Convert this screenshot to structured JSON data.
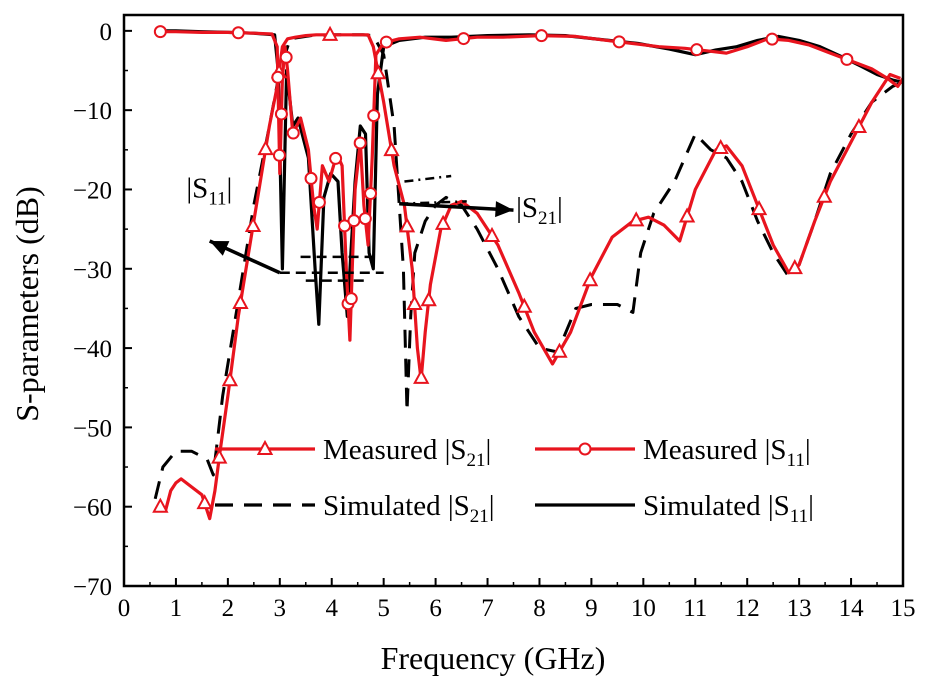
{
  "chart_data": {
    "type": "line",
    "xlabel": "Frequency (GHz)",
    "ylabel": "S-parameters (dB)",
    "xlim": [
      0,
      15
    ],
    "ylim": [
      -70,
      2
    ],
    "xticks": [
      0,
      1,
      2,
      3,
      4,
      5,
      6,
      7,
      8,
      9,
      10,
      11,
      12,
      13,
      14,
      15
    ],
    "yticks": [
      0,
      -10,
      -20,
      -30,
      -40,
      -50,
      -60,
      -70
    ],
    "xtick_labels": [
      "0",
      "1",
      "2",
      "3",
      "4",
      "5",
      "6",
      "7",
      "8",
      "9",
      "10",
      "11",
      "12",
      "13",
      "14",
      "15"
    ],
    "ytick_labels": [
      "0",
      "−10",
      "−20",
      "−30",
      "−40",
      "−50",
      "−60",
      "−70"
    ],
    "grid": false,
    "legend_position": "lower-center",
    "series": [
      {
        "name": "Measured |S21|",
        "legend_main": "Measured ",
        "legend_sub": "21",
        "color": "#e8141e",
        "style": "solid",
        "marker": "triangle",
        "x": [
          0.7,
          0.8,
          0.9,
          1.0,
          1.1,
          1.3,
          1.5,
          1.65,
          1.75,
          1.85,
          2.0,
          2.2,
          2.4,
          2.6,
          2.8,
          2.95,
          3.05,
          3.15,
          3.3,
          3.5,
          3.7,
          3.8,
          3.9,
          4.0,
          4.2,
          4.3,
          4.4,
          4.5,
          4.6,
          4.7,
          4.8,
          5.0,
          5.2,
          5.4,
          5.55,
          5.65,
          5.72,
          5.8,
          5.9,
          6.1,
          6.3,
          6.5,
          6.8,
          7.2,
          7.6,
          7.9,
          8.25,
          8.6,
          9.0,
          9.4,
          9.8,
          10.1,
          10.4,
          10.7,
          11.0,
          11.4,
          11.6,
          11.9,
          12.2,
          12.5,
          12.8,
          13.0,
          13.3,
          13.6,
          14.0,
          14.4,
          14.75,
          14.95
        ],
        "y": [
          -60,
          -60.5,
          -58,
          -57,
          -56.5,
          -57.5,
          -58.5,
          -61.5,
          -58,
          -53,
          -46,
          -36,
          -28,
          -20,
          -12,
          -7,
          -2,
          -1,
          -0.8,
          -0.6,
          -0.5,
          -0.5,
          -0.5,
          -0.5,
          -0.5,
          -0.5,
          -0.5,
          -0.5,
          -0.5,
          -0.5,
          -2,
          -9,
          -17,
          -22,
          -30,
          -40,
          -44,
          -38,
          -32,
          -25,
          -22,
          -21.5,
          -23,
          -27,
          -33,
          -38,
          -42,
          -38,
          -31,
          -26,
          -24,
          -23.5,
          -24.5,
          -26.5,
          -20,
          -15,
          -14.5,
          -17,
          -22,
          -27,
          -30.5,
          -29.5,
          -24,
          -19,
          -14,
          -9,
          -5.5,
          -6
        ]
      },
      {
        "name": "Measured |S11|",
        "legend_main": "Measured ",
        "legend_sub": "11",
        "color": "#e8141e",
        "style": "solid",
        "marker": "circle",
        "x": [
          0.7,
          1.0,
          1.5,
          2.0,
          2.5,
          2.85,
          2.95,
          3.0,
          3.05,
          3.1,
          3.15,
          3.25,
          3.4,
          3.55,
          3.65,
          3.72,
          3.82,
          3.95,
          4.1,
          4.2,
          4.28,
          4.35,
          4.4,
          4.45,
          4.55,
          4.62,
          4.7,
          4.78,
          4.85,
          5.0,
          5.3,
          5.7,
          6.2,
          6.8,
          7.3,
          8.0,
          8.7,
          9.3,
          9.8,
          10.3,
          10.8,
          11.2,
          11.6,
          12.0,
          12.4,
          12.8,
          13.2,
          13.6,
          14.0,
          14.4,
          14.7,
          14.9,
          15.0
        ],
        "y": [
          -0.1,
          -0.1,
          -0.2,
          -0.2,
          -0.3,
          -0.4,
          -2,
          -18,
          -6,
          -2,
          -5,
          -13,
          -11,
          -15,
          -22,
          -25,
          -17,
          -19,
          -15.5,
          -17,
          -30,
          -39,
          -29,
          -20,
          -14,
          -22,
          -27,
          -16,
          -3,
          -1.5,
          -1,
          -0.8,
          -1.2,
          -0.8,
          -0.8,
          -0.6,
          -0.7,
          -1.2,
          -1.6,
          -2,
          -2.2,
          -2.5,
          -2.8,
          -2,
          -1,
          -1.2,
          -1.8,
          -2.8,
          -3.8,
          -4.8,
          -6,
          -7,
          -6
        ]
      },
      {
        "name": "Simulated |S21|",
        "legend_main": "Simulated ",
        "legend_sub": "21",
        "color": "#000000",
        "style": "dashed",
        "x": [
          0.6,
          0.75,
          1.0,
          1.3,
          1.6,
          1.72,
          1.9,
          2.2,
          2.5,
          2.8,
          3.0,
          3.2,
          3.6,
          4.0,
          4.4,
          4.6,
          4.8,
          5.0,
          5.2,
          5.38,
          5.45,
          5.52,
          5.6,
          5.8,
          6.0,
          6.2,
          6.5,
          6.8,
          7.2,
          7.6,
          8.0,
          8.35,
          8.7,
          9.0,
          9.5,
          9.8,
          9.95,
          10.2,
          10.6,
          11.0,
          11.3,
          11.6,
          11.9,
          12.2,
          12.5,
          12.8,
          13.0,
          13.3,
          13.6,
          14.0,
          14.4,
          14.8,
          15.0
        ],
        "y": [
          -59,
          -55,
          -53,
          -53,
          -54,
          -56,
          -46,
          -34,
          -22,
          -12,
          -5,
          -1,
          -0.6,
          -0.5,
          -0.5,
          -0.5,
          -0.6,
          -3,
          -12,
          -30,
          -48,
          -36,
          -28,
          -24,
          -22,
          -21,
          -22,
          -25,
          -30,
          -36,
          -40,
          -40.5,
          -35,
          -34.5,
          -34.5,
          -35.5,
          -28,
          -23,
          -19,
          -13,
          -15,
          -16,
          -19,
          -24,
          -28,
          -31,
          -29.5,
          -24,
          -18,
          -13,
          -9,
          -7,
          -6.5
        ]
      },
      {
        "name": "Simulated |S11|",
        "legend_main": "Simulated ",
        "legend_sub": "11",
        "color": "#000000",
        "style": "solid",
        "x": [
          0.6,
          1.0,
          1.5,
          2.0,
          2.5,
          2.9,
          2.97,
          3.05,
          3.13,
          3.25,
          3.35,
          3.55,
          3.68,
          3.75,
          3.85,
          3.98,
          4.12,
          4.2,
          4.3,
          4.37,
          4.45,
          4.55,
          4.65,
          4.72,
          4.8,
          4.88,
          5.0,
          5.3,
          5.8,
          6.3,
          7.0,
          7.8,
          8.5,
          9.2,
          9.9,
          10.5,
          11.0,
          11.4,
          11.8,
          12.2,
          12.6,
          13.0,
          13.4,
          13.8,
          14.2,
          14.5,
          14.8,
          15.0
        ],
        "y": [
          0,
          0,
          -0.1,
          -0.2,
          -0.3,
          -0.5,
          -5,
          -30,
          -5,
          -12,
          -11,
          -16,
          -30,
          -37,
          -21,
          -18,
          -19,
          -28,
          -36,
          -28,
          -19,
          -12,
          -13,
          -28,
          -30,
          -8,
          -2,
          -1.2,
          -0.8,
          -0.8,
          -0.6,
          -0.5,
          -0.6,
          -1.1,
          -1.6,
          -2.3,
          -3,
          -2.4,
          -2,
          -1.2,
          -0.7,
          -1.2,
          -2,
          -3.2,
          -4.5,
          -5.5,
          -6.2,
          -6.5
        ]
      }
    ],
    "annotations": [
      {
        "label_main": "|S",
        "label_sub": "11",
        "label_end": "|",
        "x": 1.2,
        "y": -21,
        "arrow_from": [
          3.0,
          -30.5
        ],
        "arrow_to": [
          1.65,
          -26.5
        ],
        "guide_lines": [
          [
            [
              3.0,
              -30.5
            ],
            [
              5.0,
              -30.5
            ]
          ],
          [
            [
              3.4,
              -28.5
            ],
            [
              4.9,
              -28.5
            ]
          ],
          [
            [
              3.5,
              -31.5
            ],
            [
              4.7,
              -31.5
            ]
          ]
        ]
      },
      {
        "label_main": "|S",
        "label_sub": "21",
        "label_end": "|",
        "x": 7.55,
        "y": -23.5,
        "arrow_from": [
          5.3,
          -21.8
        ],
        "arrow_to": [
          7.5,
          -22.6
        ],
        "guide_lines": [
          [
            [
              5.3,
              -21.8
            ],
            [
              6.6,
              -21.5
            ]
          ],
          [
            [
              5.4,
              -19
            ],
            [
              6.3,
              -18.3
            ]
          ]
        ]
      }
    ]
  }
}
